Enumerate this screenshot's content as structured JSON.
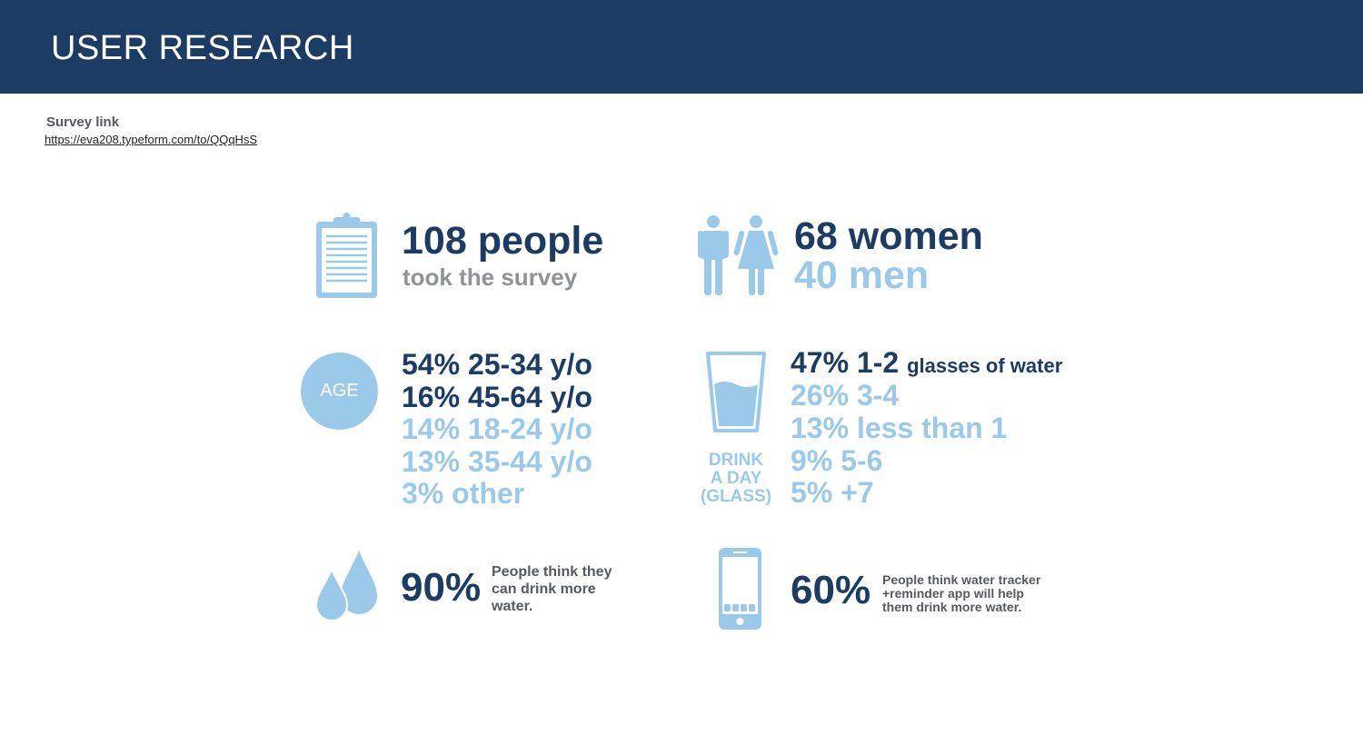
{
  "header": {
    "title": "USER RESEARCH"
  },
  "survey": {
    "label": "Survey link",
    "url": "https://eva208.typeform.com/to/QQqHsS"
  },
  "participants": {
    "icon": "clipboard-icon",
    "count": "108 people",
    "caption": "took the survey"
  },
  "gender": {
    "icon": "man-woman-icon",
    "women": "68 women",
    "men": "40 men"
  },
  "age": {
    "badge": "AGE",
    "lines": [
      "54% 25-34 y/o",
      "16% 45-64 y/o",
      "14% 18-24 y/o",
      "13% 35-44 y/o",
      "3% other"
    ]
  },
  "water": {
    "icon": "glass-icon",
    "label_lines": [
      "DRINK",
      "A DAY",
      "(GLASS)"
    ],
    "first": "47% 1-2",
    "first_suffix": "glasses of water",
    "lines": [
      "26% 3-4",
      "13% less than 1",
      "9% 5-6",
      "5% +7"
    ]
  },
  "belief": {
    "icon": "water-drops-icon",
    "percent": "90%",
    "text_lines": [
      "People think they",
      "can drink more",
      "water."
    ]
  },
  "app": {
    "icon": "smartphone-icon",
    "percent": "60%",
    "text_lines": [
      "People think water tracker",
      "+reminder app will help",
      "them drink more water."
    ]
  },
  "colors": {
    "header": "#1c3c63",
    "dark": "#1c3c63",
    "light": "#9ac9e9",
    "gray": "#8f9296"
  }
}
